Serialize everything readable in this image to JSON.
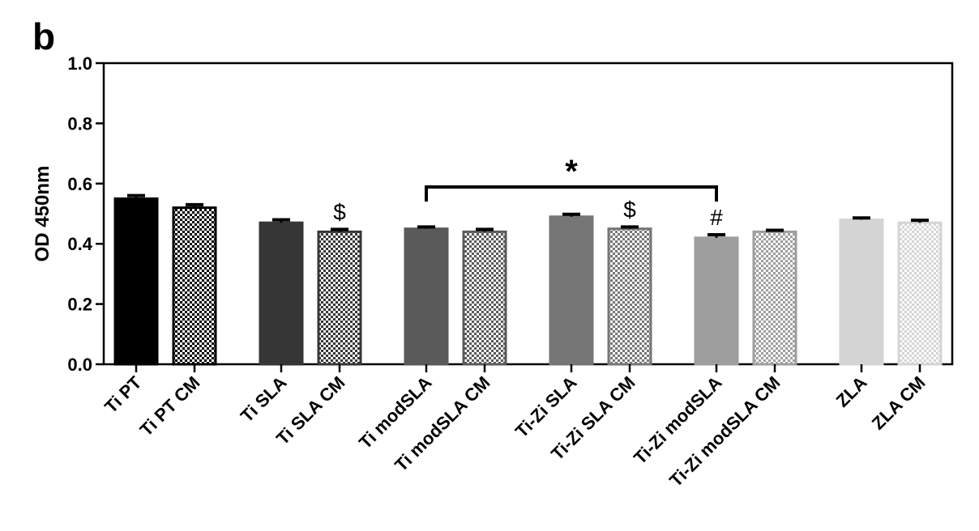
{
  "panel_label": "b",
  "chart_data": {
    "type": "bar",
    "ylabel": "OD 450nm",
    "ylim": [
      0,
      1.0
    ],
    "yticks": [
      "0.0",
      "0.2",
      "0.4",
      "0.6",
      "0.8",
      "1.0"
    ],
    "grid": false,
    "categories": [
      "Ti PT",
      "Ti PT CM",
      "Ti SLA",
      "Ti SLA CM",
      "Ti modSLA",
      "Ti modSLA CM",
      "Ti-Zi SLA",
      "Ti-Zi SLA CM",
      "Ti-Zi modSLA",
      "Ti-Zi modSLA CM",
      "ZLA",
      "ZLA CM"
    ],
    "values": [
      0.55,
      0.52,
      0.47,
      0.44,
      0.45,
      0.44,
      0.49,
      0.45,
      0.42,
      0.44,
      0.48,
      0.47
    ],
    "errors": [
      0.01,
      0.01,
      0.01,
      0.008,
      0.006,
      0.008,
      0.008,
      0.006,
      0.01,
      0.005,
      0.006,
      0.008
    ],
    "colors": [
      "#000000",
      "#000000",
      "#363636",
      "#363636",
      "#5a5a5a",
      "#5a5a5a",
      "#767676",
      "#767676",
      "#9e9e9e",
      "#9e9e9e",
      "#d4d4d4",
      "#d4d4d4"
    ],
    "patterned": [
      false,
      true,
      false,
      true,
      false,
      true,
      false,
      true,
      false,
      true,
      false,
      true
    ],
    "annotations": [
      {
        "category": "Ti SLA CM",
        "text": "$"
      },
      {
        "category": "Ti-Zi SLA CM",
        "text": "$"
      },
      {
        "category": "Ti-Zi modSLA",
        "text": "#"
      }
    ],
    "comparison": {
      "from": "Ti modSLA",
      "to": "Ti-Zi modSLA",
      "text": "*"
    }
  }
}
